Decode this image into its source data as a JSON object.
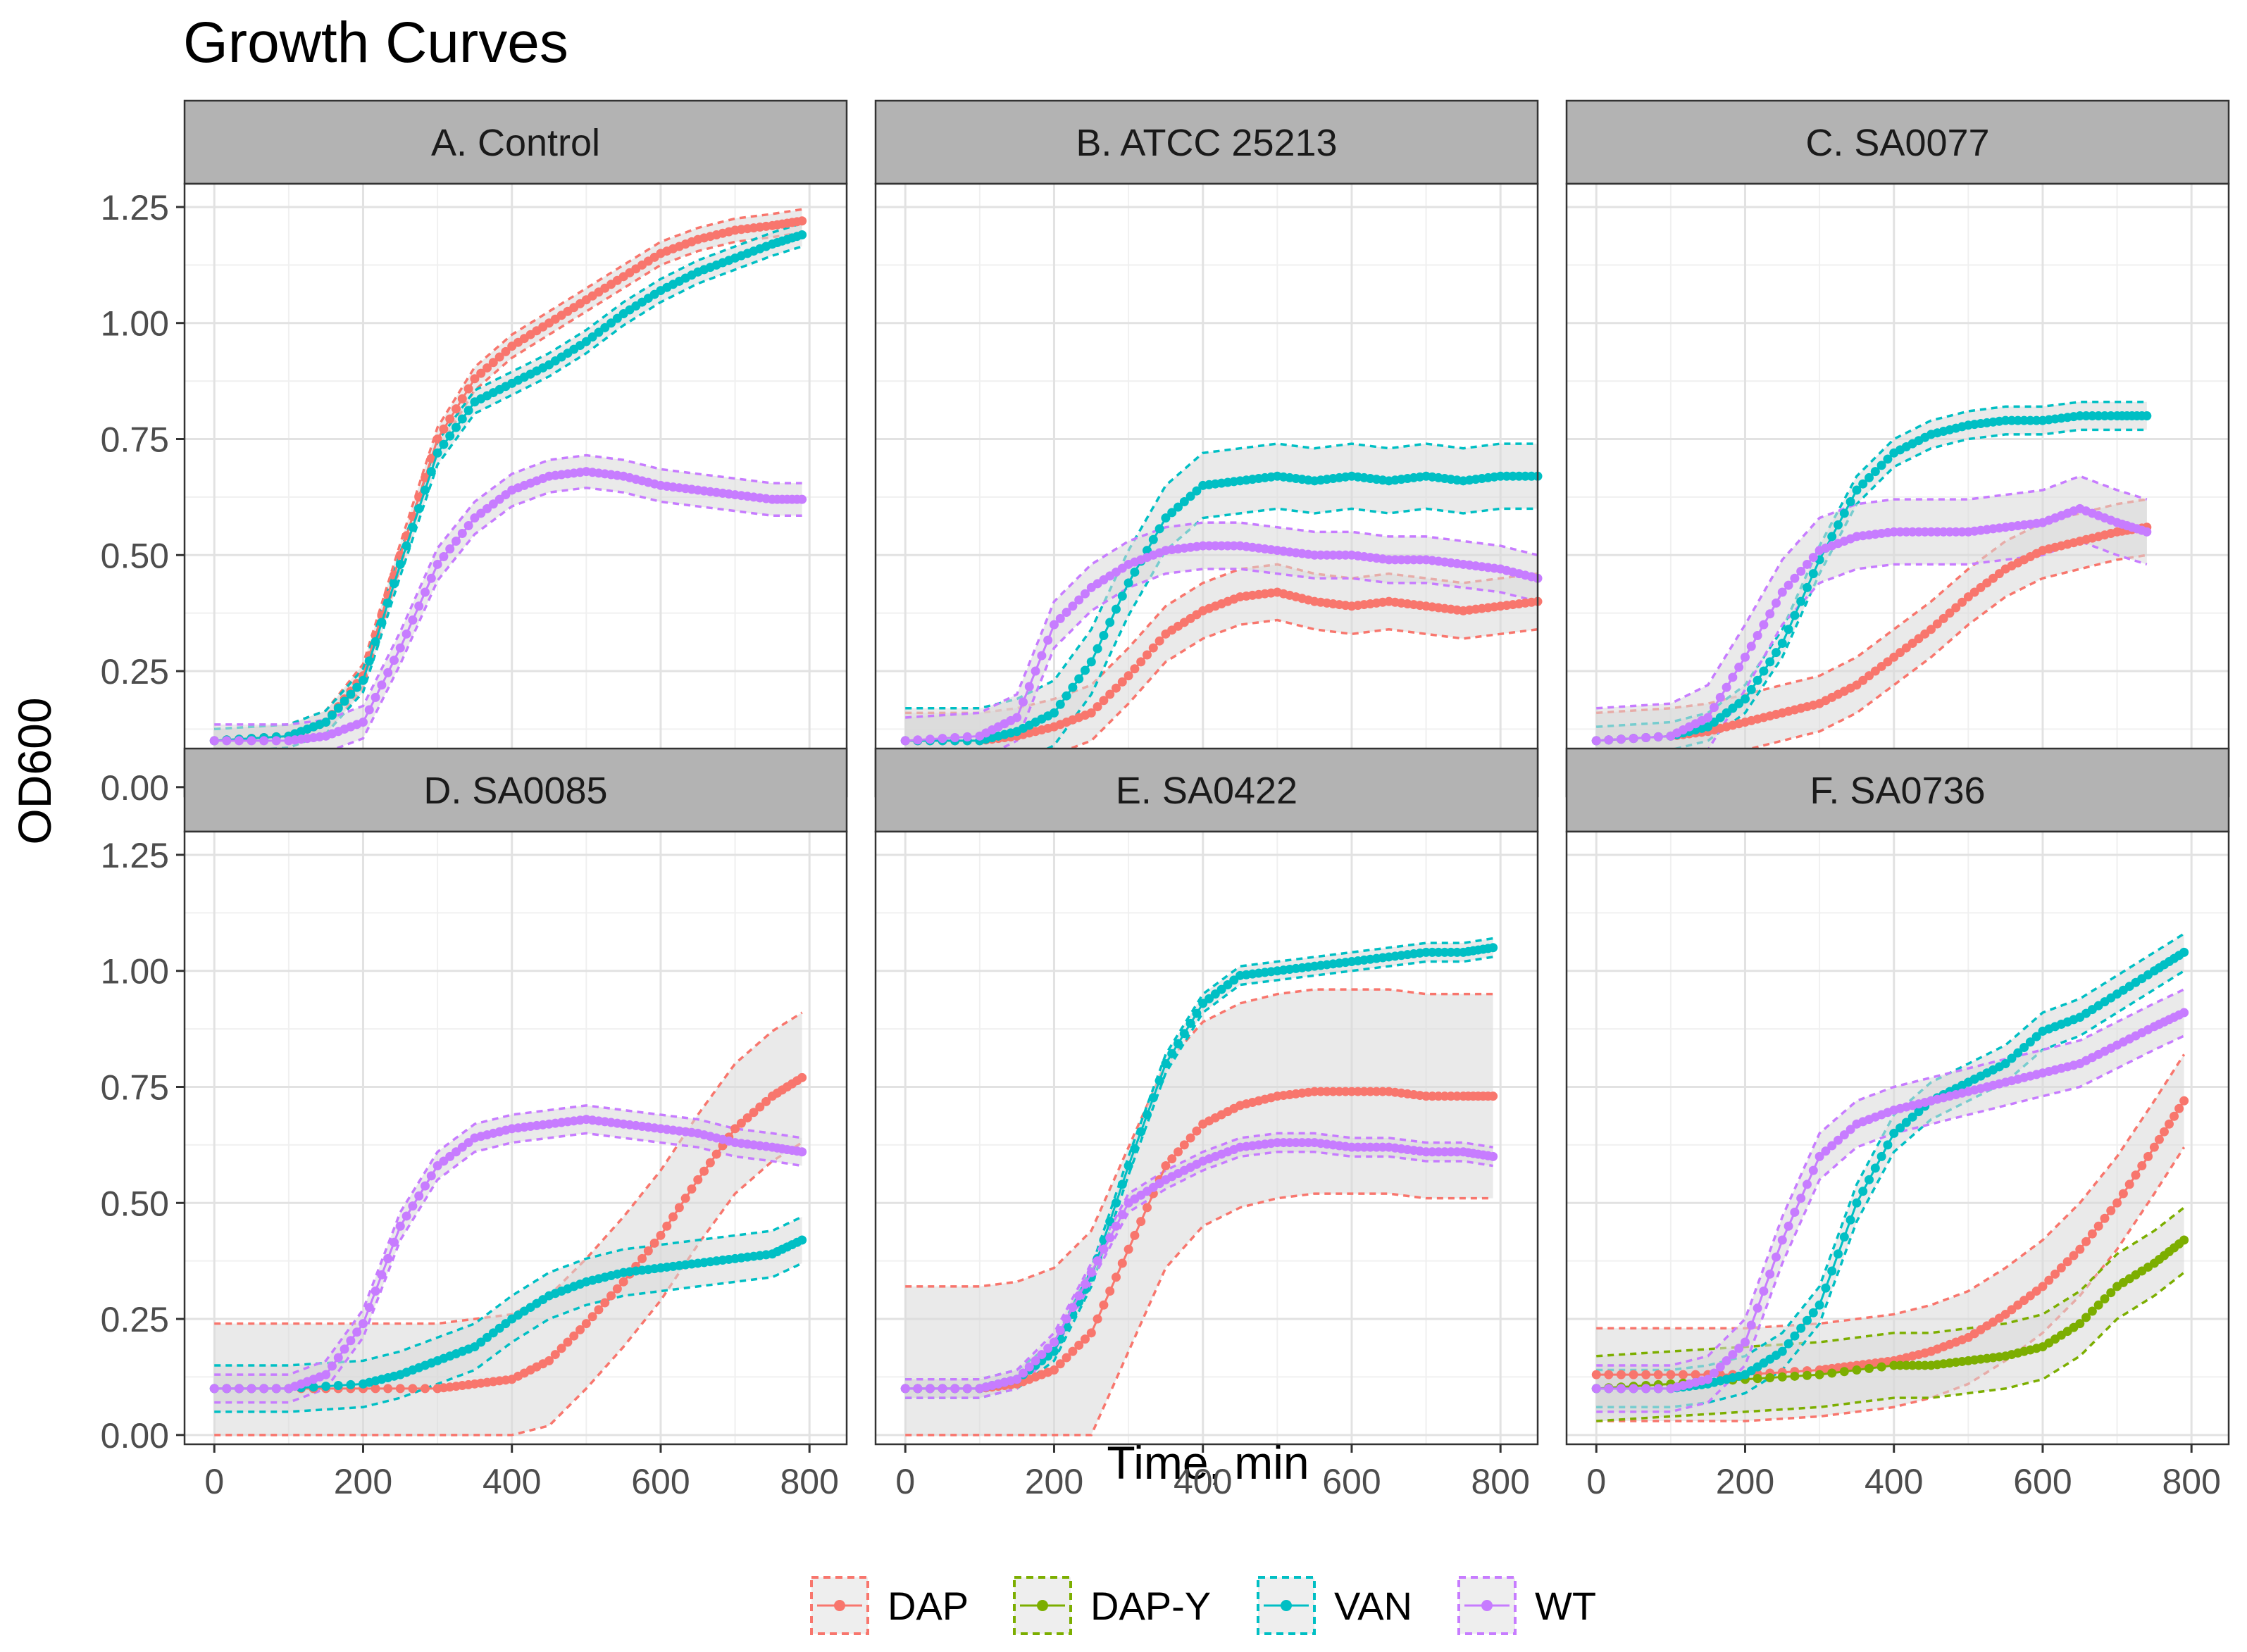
{
  "chart_data": {
    "type": "line",
    "title": "Growth Curves",
    "xlabel": "Time, min",
    "ylabel": "OD600",
    "xlim": [
      -40,
      850
    ],
    "ylim": [
      -0.02,
      1.3
    ],
    "x_ticks": [
      0,
      200,
      400,
      600,
      800
    ],
    "x_tick_labels": [
      "0",
      "200",
      "400",
      "600",
      "800"
    ],
    "y_ticks": [
      0,
      0.25,
      0.5,
      0.75,
      1.0,
      1.25
    ],
    "y_tick_labels": [
      "0.00",
      "0.25",
      "0.50",
      "0.75",
      "1.00",
      "1.25"
    ],
    "grid": true,
    "legend_position": "bottom",
    "legend": [
      {
        "name": "DAP",
        "color": "#F8766D"
      },
      {
        "name": "DAP-Y",
        "color": "#7CAE00"
      },
      {
        "name": "VAN",
        "color": "#00BFC4"
      },
      {
        "name": "WT",
        "color": "#C77CFF"
      }
    ],
    "ribbon_color": "#d9d9d9",
    "strip_color": "#b3b3b3",
    "panels": [
      {
        "title": "A. Control",
        "series": [
          {
            "name": "DAP",
            "x": [
              0,
              100,
              150,
              200,
              250,
              300,
              350,
              400,
              450,
              500,
              550,
              600,
              650,
              700,
              750,
              790
            ],
            "y": [
              0.1,
              0.11,
              0.14,
              0.24,
              0.5,
              0.75,
              0.88,
              0.95,
              1.0,
              1.05,
              1.1,
              1.15,
              1.18,
              1.2,
              1.21,
              1.22
            ],
            "band": 0.025
          },
          {
            "name": "VAN",
            "x": [
              0,
              100,
              150,
              200,
              250,
              300,
              350,
              400,
              450,
              500,
              550,
              600,
              650,
              700,
              750,
              790
            ],
            "y": [
              0.1,
              0.11,
              0.14,
              0.23,
              0.48,
              0.72,
              0.83,
              0.87,
              0.91,
              0.96,
              1.02,
              1.07,
              1.11,
              1.14,
              1.17,
              1.19
            ],
            "band": 0.025
          },
          {
            "name": "WT",
            "x": [
              0,
              100,
              150,
              200,
              250,
              300,
              350,
              400,
              450,
              500,
              550,
              600,
              650,
              700,
              750,
              790
            ],
            "y": [
              0.1,
              0.1,
              0.11,
              0.14,
              0.3,
              0.48,
              0.58,
              0.64,
              0.67,
              0.68,
              0.67,
              0.65,
              0.64,
              0.63,
              0.62,
              0.62
            ],
            "band": 0.035
          }
        ]
      },
      {
        "title": "B. ATCC 25213",
        "series": [
          {
            "name": "DAP",
            "x": [
              0,
              100,
              150,
              200,
              250,
              300,
              350,
              400,
              450,
              500,
              550,
              600,
              650,
              700,
              750,
              800,
              850
            ],
            "y": [
              0.1,
              0.1,
              0.11,
              0.13,
              0.16,
              0.24,
              0.33,
              0.38,
              0.41,
              0.42,
              0.4,
              0.39,
              0.4,
              0.39,
              0.38,
              0.39,
              0.4
            ],
            "band": 0.06
          },
          {
            "name": "VAN",
            "x": [
              0,
              100,
              150,
              200,
              250,
              300,
              350,
              400,
              450,
              500,
              550,
              600,
              650,
              700,
              750,
              800,
              850
            ],
            "y": [
              0.1,
              0.1,
              0.12,
              0.16,
              0.27,
              0.44,
              0.58,
              0.65,
              0.66,
              0.67,
              0.66,
              0.67,
              0.66,
              0.67,
              0.66,
              0.67,
              0.67
            ],
            "band": 0.07
          },
          {
            "name": "WT",
            "x": [
              0,
              100,
              150,
              200,
              250,
              300,
              350,
              400,
              450,
              500,
              550,
              600,
              650,
              700,
              750,
              800,
              850
            ],
            "y": [
              0.1,
              0.11,
              0.15,
              0.35,
              0.43,
              0.48,
              0.51,
              0.52,
              0.52,
              0.51,
              0.5,
              0.5,
              0.49,
              0.49,
              0.48,
              0.47,
              0.45
            ],
            "band": 0.05
          }
        ]
      },
      {
        "title": "C. SA0077",
        "series": [
          {
            "name": "DAP",
            "x": [
              0,
              100,
              150,
              200,
              250,
              300,
              350,
              400,
              450,
              500,
              550,
              600,
              650,
              700,
              740
            ],
            "y": [
              0.1,
              0.11,
              0.12,
              0.14,
              0.16,
              0.18,
              0.22,
              0.28,
              0.34,
              0.41,
              0.47,
              0.51,
              0.53,
              0.55,
              0.56
            ],
            "band": 0.06
          },
          {
            "name": "VAN",
            "x": [
              0,
              100,
              150,
              200,
              250,
              300,
              350,
              400,
              450,
              500,
              550,
              600,
              650,
              700,
              740
            ],
            "y": [
              0.1,
              0.11,
              0.13,
              0.19,
              0.31,
              0.49,
              0.64,
              0.72,
              0.76,
              0.78,
              0.79,
              0.79,
              0.8,
              0.8,
              0.8
            ],
            "band": 0.03
          },
          {
            "name": "WT",
            "x": [
              0,
              100,
              150,
              200,
              250,
              300,
              350,
              400,
              450,
              500,
              550,
              600,
              650,
              700,
              740
            ],
            "y": [
              0.1,
              0.11,
              0.15,
              0.28,
              0.42,
              0.51,
              0.54,
              0.55,
              0.55,
              0.55,
              0.56,
              0.57,
              0.6,
              0.57,
              0.55
            ],
            "band": 0.07
          }
        ]
      },
      {
        "title": "D. SA0085",
        "series": [
          {
            "name": "DAP",
            "x": [
              0,
              100,
              200,
              300,
              350,
              400,
              450,
              500,
              550,
              600,
              650,
              700,
              750,
              790
            ],
            "y": [
              0.1,
              0.1,
              0.1,
              0.1,
              0.11,
              0.12,
              0.16,
              0.24,
              0.33,
              0.43,
              0.55,
              0.66,
              0.73,
              0.77
            ],
            "band": 0.14
          },
          {
            "name": "VAN",
            "x": [
              0,
              100,
              200,
              250,
              300,
              350,
              400,
              450,
              500,
              550,
              600,
              650,
              700,
              750,
              790
            ],
            "y": [
              0.1,
              0.1,
              0.11,
              0.13,
              0.16,
              0.19,
              0.25,
              0.3,
              0.33,
              0.35,
              0.36,
              0.37,
              0.38,
              0.39,
              0.42
            ],
            "band": 0.05
          },
          {
            "name": "WT",
            "x": [
              0,
              100,
              150,
              200,
              250,
              300,
              350,
              400,
              450,
              500,
              550,
              600,
              650,
              700,
              750,
              790
            ],
            "y": [
              0.1,
              0.1,
              0.13,
              0.24,
              0.45,
              0.58,
              0.64,
              0.66,
              0.67,
              0.68,
              0.67,
              0.66,
              0.65,
              0.63,
              0.62,
              0.61
            ],
            "band": 0.03
          }
        ]
      },
      {
        "title": "E. SA0422",
        "series": [
          {
            "name": "DAP",
            "x": [
              0,
              100,
              150,
              200,
              250,
              300,
              350,
              400,
              450,
              500,
              550,
              600,
              650,
              700,
              750,
              790
            ],
            "y": [
              0.1,
              0.1,
              0.11,
              0.14,
              0.22,
              0.4,
              0.58,
              0.67,
              0.71,
              0.73,
              0.74,
              0.74,
              0.74,
              0.73,
              0.73,
              0.73
            ],
            "band": 0.22
          },
          {
            "name": "VAN",
            "x": [
              0,
              100,
              150,
              200,
              250,
              300,
              350,
              400,
              450,
              500,
              550,
              600,
              650,
              700,
              750,
              790
            ],
            "y": [
              0.1,
              0.1,
              0.12,
              0.18,
              0.34,
              0.58,
              0.8,
              0.93,
              0.99,
              1.0,
              1.01,
              1.02,
              1.03,
              1.04,
              1.04,
              1.05
            ],
            "band": 0.02
          },
          {
            "name": "WT",
            "x": [
              0,
              100,
              150,
              200,
              250,
              300,
              350,
              400,
              450,
              500,
              550,
              600,
              650,
              700,
              750,
              790
            ],
            "y": [
              0.1,
              0.1,
              0.12,
              0.2,
              0.35,
              0.5,
              0.55,
              0.59,
              0.62,
              0.63,
              0.63,
              0.62,
              0.62,
              0.61,
              0.61,
              0.6
            ],
            "band": 0.02
          }
        ]
      },
      {
        "title": "F. SA0736",
        "series": [
          {
            "name": "DAP",
            "x": [
              0,
              100,
              200,
              300,
              350,
              400,
              450,
              500,
              550,
              600,
              650,
              700,
              750,
              790
            ],
            "y": [
              0.13,
              0.13,
              0.13,
              0.14,
              0.15,
              0.16,
              0.18,
              0.21,
              0.26,
              0.32,
              0.4,
              0.5,
              0.62,
              0.72
            ],
            "band": 0.1
          },
          {
            "name": "DAP-Y",
            "x": [
              0,
              100,
              200,
              300,
              400,
              450,
              500,
              550,
              600,
              650,
              700,
              750,
              790
            ],
            "y": [
              0.1,
              0.11,
              0.12,
              0.13,
              0.15,
              0.15,
              0.16,
              0.17,
              0.19,
              0.24,
              0.32,
              0.37,
              0.42
            ],
            "band": 0.07
          },
          {
            "name": "VAN",
            "x": [
              0,
              100,
              150,
              200,
              250,
              300,
              350,
              400,
              450,
              500,
              550,
              600,
              650,
              700,
              750,
              790
            ],
            "y": [
              0.1,
              0.1,
              0.11,
              0.13,
              0.18,
              0.28,
              0.5,
              0.65,
              0.72,
              0.76,
              0.8,
              0.87,
              0.9,
              0.95,
              1.0,
              1.04
            ],
            "band": 0.04
          },
          {
            "name": "WT",
            "x": [
              0,
              100,
              150,
              200,
              250,
              300,
              350,
              400,
              450,
              500,
              550,
              600,
              650,
              700,
              750,
              790
            ],
            "y": [
              0.1,
              0.1,
              0.12,
              0.2,
              0.42,
              0.6,
              0.67,
              0.7,
              0.72,
              0.74,
              0.76,
              0.78,
              0.8,
              0.84,
              0.88,
              0.91
            ],
            "band": 0.05
          }
        ]
      }
    ]
  }
}
